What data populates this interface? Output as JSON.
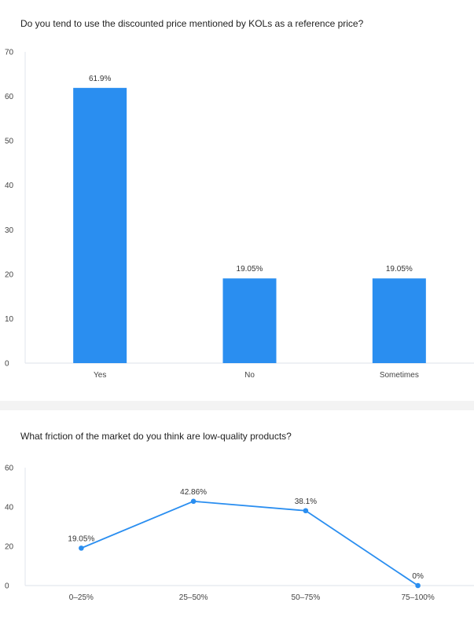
{
  "chart_data": [
    {
      "type": "bar",
      "title": "Do you tend to use the discounted price mentioned by KOLs as a reference price?",
      "categories": [
        "Yes",
        "No",
        "Sometimes"
      ],
      "values": [
        61.9,
        19.05,
        19.05
      ],
      "data_labels": [
        "61.9%",
        "19.05%",
        "19.05%"
      ],
      "yticks": [
        "0",
        "10",
        "20",
        "30",
        "40",
        "50",
        "60",
        "70"
      ],
      "ylim": [
        0,
        70
      ],
      "grid": false,
      "color": "#2a8ef0"
    },
    {
      "type": "line",
      "title": "What friction of the market do you think are low-quality products?",
      "categories": [
        "0–25%",
        "25–50%",
        "50–75%",
        "75–100%"
      ],
      "values": [
        19.05,
        42.86,
        38.1,
        0
      ],
      "data_labels": [
        "19.05%",
        "42.86%",
        "38.1%",
        "0%"
      ],
      "yticks": [
        "0",
        "20",
        "40",
        "60"
      ],
      "ylim": [
        0,
        60
      ],
      "grid": false,
      "color": "#2a8ef0"
    }
  ]
}
